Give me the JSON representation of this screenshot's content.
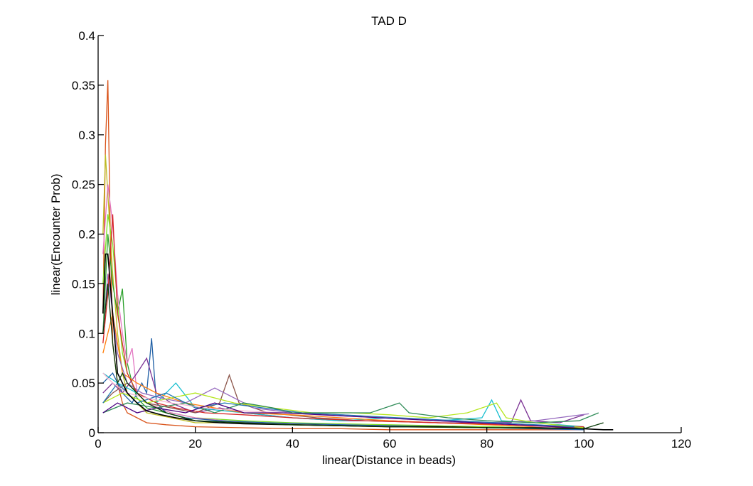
{
  "chart_data": {
    "type": "line",
    "title": "TAD D",
    "xlabel": "linear(Distance in beads)",
    "ylabel": "linear(Encounter Prob)",
    "xlim": [
      0,
      120
    ],
    "ylim": [
      0,
      0.4
    ],
    "xticks": [
      0,
      20,
      40,
      60,
      80,
      100,
      120
    ],
    "xtick_labels": [
      "0",
      "20",
      "40",
      "60",
      "80",
      "100",
      "120"
    ],
    "yticks": [
      0,
      0.05,
      0.1,
      0.15,
      0.2,
      0.25,
      0.3,
      0.35,
      0.4
    ],
    "ytick_labels": [
      "0",
      "0.05",
      "0.1",
      "0.15",
      "0.2",
      "0.25",
      "0.3",
      "0.35",
      "0.4"
    ],
    "grid": false,
    "legend": "none",
    "series": [
      {
        "color": "#d95319",
        "x": [
          1,
          1.5,
          2,
          2.5,
          3,
          4,
          5,
          6,
          8,
          10,
          14,
          20,
          30,
          40,
          50,
          60,
          70,
          80,
          90,
          100
        ],
        "values": [
          0.12,
          0.29,
          0.355,
          0.2,
          0.09,
          0.05,
          0.03,
          0.02,
          0.015,
          0.01,
          0.008,
          0.006,
          0.005,
          0.004,
          0.004,
          0.003,
          0.003,
          0.003,
          0.003,
          0.003
        ]
      },
      {
        "color": "#bcbd22",
        "x": [
          1,
          1.5,
          2,
          3,
          4,
          5,
          6,
          8,
          10,
          15,
          20,
          30,
          40,
          60,
          80,
          100
        ],
        "values": [
          0.2,
          0.28,
          0.24,
          0.16,
          0.1,
          0.06,
          0.04,
          0.03,
          0.02,
          0.015,
          0.01,
          0.01,
          0.008,
          0.006,
          0.005,
          0.004
        ]
      },
      {
        "color": "#2ca02c",
        "x": [
          1,
          2,
          3,
          4,
          5,
          6,
          7,
          8,
          10,
          14,
          20,
          30,
          40,
          60,
          80,
          100
        ],
        "values": [
          0.1,
          0.2,
          0.15,
          0.12,
          0.145,
          0.07,
          0.05,
          0.035,
          0.025,
          0.02,
          0.012,
          0.01,
          0.008,
          0.007,
          0.006,
          0.004
        ]
      },
      {
        "color": "#7fdf2a",
        "x": [
          1,
          2,
          3,
          4,
          5,
          6,
          8,
          10,
          15,
          20,
          30,
          40,
          60,
          80,
          100
        ],
        "values": [
          0.15,
          0.22,
          0.19,
          0.13,
          0.08,
          0.06,
          0.04,
          0.03,
          0.02,
          0.015,
          0.012,
          0.01,
          0.008,
          0.006,
          0.004
        ]
      },
      {
        "color": "#e377c2",
        "x": [
          1,
          2,
          3,
          4,
          5,
          6,
          7,
          8,
          10,
          15,
          20,
          30,
          40,
          60,
          80,
          100
        ],
        "values": [
          0.18,
          0.25,
          0.21,
          0.14,
          0.1,
          0.07,
          0.085,
          0.04,
          0.03,
          0.02,
          0.015,
          0.01,
          0.009,
          0.007,
          0.005,
          0.003
        ]
      },
      {
        "color": "#1f5fa5",
        "x": [
          1,
          3,
          5,
          7,
          9,
          10,
          11,
          12,
          14,
          18,
          25,
          35,
          50,
          70,
          90,
          100
        ],
        "values": [
          0.05,
          0.06,
          0.04,
          0.03,
          0.05,
          0.04,
          0.095,
          0.03,
          0.02,
          0.015,
          0.012,
          0.01,
          0.008,
          0.006,
          0.004,
          0.003
        ]
      },
      {
        "color": "#7b3294",
        "x": [
          1,
          3,
          5,
          8,
          10,
          12,
          15,
          20,
          25,
          30,
          40,
          50,
          60,
          70,
          80,
          85,
          87,
          89,
          95,
          100
        ],
        "values": [
          0.04,
          0.05,
          0.04,
          0.06,
          0.075,
          0.04,
          0.03,
          0.02,
          0.025,
          0.02,
          0.015,
          0.012,
          0.012,
          0.01,
          0.01,
          0.01,
          0.033,
          0.012,
          0.01,
          0.018
        ]
      },
      {
        "color": "#8c564b",
        "x": [
          1,
          3,
          6,
          10,
          15,
          20,
          25,
          27,
          29,
          35,
          45,
          55,
          70,
          85,
          100
        ],
        "values": [
          0.03,
          0.04,
          0.05,
          0.03,
          0.025,
          0.02,
          0.03,
          0.058,
          0.03,
          0.02,
          0.015,
          0.012,
          0.01,
          0.008,
          0.005
        ]
      },
      {
        "color": "#17becf",
        "x": [
          1,
          4,
          8,
          12,
          16,
          20,
          30,
          40,
          50,
          60,
          70,
          79,
          81,
          83,
          90,
          100
        ],
        "values": [
          0.06,
          0.05,
          0.04,
          0.03,
          0.05,
          0.025,
          0.02,
          0.015,
          0.012,
          0.015,
          0.012,
          0.015,
          0.033,
          0.012,
          0.01,
          0.006
        ]
      },
      {
        "color": "#ff7f0e",
        "x": [
          1,
          3,
          5,
          8,
          12,
          18,
          24,
          30,
          40,
          50,
          60,
          70,
          80,
          90,
          100
        ],
        "values": [
          0.08,
          0.12,
          0.06,
          0.05,
          0.04,
          0.03,
          0.025,
          0.02,
          0.018,
          0.015,
          0.012,
          0.01,
          0.008,
          0.006,
          0.004
        ]
      },
      {
        "color": "#9467bd",
        "x": [
          1,
          2,
          4,
          6,
          9,
          13,
          18,
          24,
          32,
          40,
          50,
          60,
          70,
          80,
          90,
          101
        ],
        "values": [
          0.1,
          0.16,
          0.08,
          0.05,
          0.04,
          0.035,
          0.03,
          0.045,
          0.025,
          0.02,
          0.018,
          0.015,
          0.012,
          0.01,
          0.012,
          0.019
        ]
      },
      {
        "color": "#d62728",
        "x": [
          1,
          2,
          3,
          4,
          6,
          8,
          12,
          16,
          22,
          30,
          40,
          55,
          70,
          85,
          100
        ],
        "values": [
          0.09,
          0.14,
          0.22,
          0.12,
          0.06,
          0.04,
          0.03,
          0.025,
          0.02,
          0.018,
          0.015,
          0.012,
          0.01,
          0.008,
          0.006
        ]
      },
      {
        "color": "#b5e61d",
        "x": [
          1,
          5,
          10,
          15,
          20,
          28,
          36,
          44,
          52,
          60,
          68,
          76,
          82,
          84,
          90,
          100
        ],
        "values": [
          0.03,
          0.04,
          0.03,
          0.035,
          0.04,
          0.03,
          0.025,
          0.02,
          0.02,
          0.018,
          0.015,
          0.02,
          0.03,
          0.015,
          0.01,
          0.005
        ]
      },
      {
        "color": "#1f77b4",
        "x": [
          1,
          4,
          8,
          14,
          20,
          26,
          34,
          42,
          50,
          58,
          66,
          74,
          82,
          90,
          98
        ],
        "values": [
          0.03,
          0.05,
          0.03,
          0.04,
          0.025,
          0.03,
          0.025,
          0.02,
          0.018,
          0.016,
          0.014,
          0.012,
          0.01,
          0.008,
          0.006
        ]
      },
      {
        "color": "#2e8b57",
        "x": [
          1,
          6,
          12,
          18,
          24,
          30,
          36,
          40,
          48,
          56,
          62,
          64,
          72,
          80,
          90,
          99,
          103
        ],
        "values": [
          0.02,
          0.03,
          0.025,
          0.03,
          0.02,
          0.03,
          0.025,
          0.02,
          0.02,
          0.02,
          0.03,
          0.02,
          0.015,
          0.012,
          0.01,
          0.012,
          0.02
        ]
      },
      {
        "color": "#f7b6d2",
        "x": [
          1,
          3,
          6,
          10,
          15,
          22,
          30,
          38,
          46,
          54,
          62,
          70,
          78,
          86,
          94
        ],
        "values": [
          0.06,
          0.05,
          0.04,
          0.035,
          0.03,
          0.025,
          0.022,
          0.02,
          0.018,
          0.016,
          0.014,
          0.012,
          0.01,
          0.008,
          0.005
        ]
      },
      {
        "color": "#4b0082",
        "x": [
          1,
          4,
          8,
          12,
          18,
          24,
          30,
          38,
          46,
          54,
          62,
          70,
          78,
          86,
          94,
          100
        ],
        "values": [
          0.02,
          0.03,
          0.02,
          0.025,
          0.02,
          0.03,
          0.02,
          0.02,
          0.018,
          0.016,
          0.014,
          0.012,
          0.01,
          0.008,
          0.006,
          0.004
        ]
      },
      {
        "color": "#000000",
        "x": [
          1,
          1.5,
          2,
          3,
          4,
          5,
          6,
          8,
          10,
          13,
          16,
          20,
          25,
          30,
          40,
          50,
          60,
          70,
          80,
          90,
          100,
          104,
          106
        ],
        "values": [
          0.12,
          0.18,
          0.18,
          0.12,
          0.06,
          0.05,
          0.04,
          0.03,
          0.022,
          0.018,
          0.015,
          0.012,
          0.01,
          0.009,
          0.008,
          0.007,
          0.006,
          0.006,
          0.005,
          0.005,
          0.004,
          0.003,
          0.003
        ]
      },
      {
        "color": "#0a3d0a",
        "x": [
          1,
          2,
          3,
          4,
          5,
          6,
          8,
          10,
          14,
          20,
          30,
          40,
          60,
          80,
          100,
          104
        ],
        "values": [
          0.1,
          0.15,
          0.09,
          0.05,
          0.06,
          0.05,
          0.04,
          0.03,
          0.02,
          0.012,
          0.01,
          0.008,
          0.006,
          0.005,
          0.004,
          0.01
        ]
      }
    ]
  }
}
